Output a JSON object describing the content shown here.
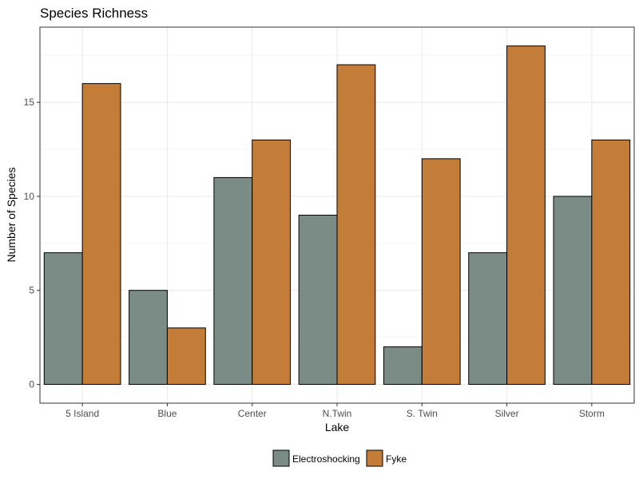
{
  "chart_data": {
    "type": "bar",
    "title": "Species Richness",
    "xlabel": "Lake",
    "ylabel": "Number of Species",
    "categories": [
      "5 Island",
      "Blue",
      "Center",
      "N.Twin",
      "S. Twin",
      "Silver",
      "Storm"
    ],
    "series": [
      {
        "name": "Electroshocking",
        "color": "#7a8c85",
        "values": [
          7,
          5,
          11,
          9,
          2,
          7,
          10
        ]
      },
      {
        "name": "Fyke",
        "color": "#c47d38",
        "values": [
          16,
          3,
          13,
          17,
          12,
          18,
          13
        ]
      }
    ],
    "ylim": [
      -1,
      19
    ],
    "yticks": [
      0,
      5,
      10,
      15
    ],
    "grid": true,
    "legend_position": "bottom"
  }
}
